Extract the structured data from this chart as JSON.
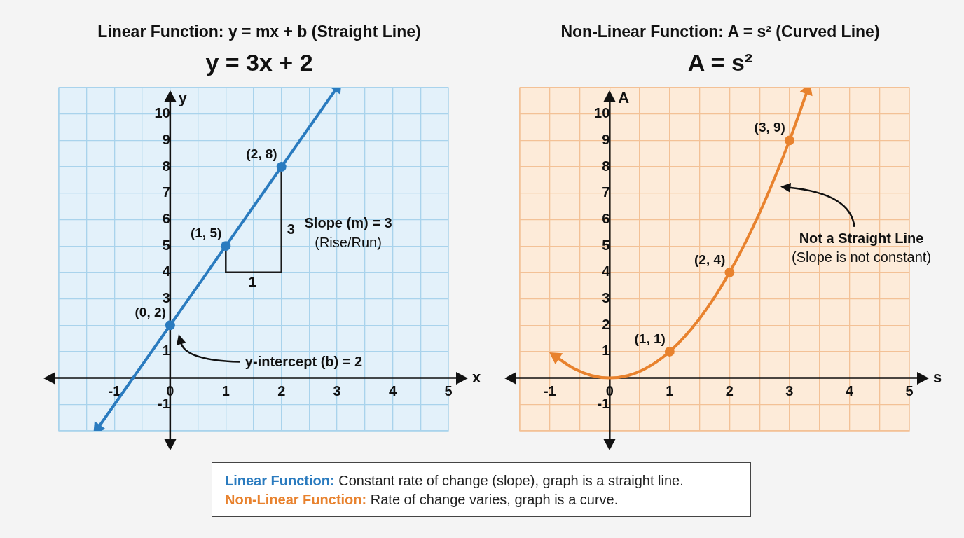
{
  "chart_data": [
    {
      "type": "line",
      "title": "Linear Function: y = mx + b (Straight Line)",
      "subtitle": "y = 3x + 2",
      "xlabel": "x",
      "ylabel": "y",
      "xlim": [
        -2,
        5
      ],
      "ylim": [
        -2,
        11
      ],
      "xticks": [
        {
          "value": -2,
          "label": null
        },
        {
          "value": -1.5,
          "label": null
        },
        -1,
        {
          "value": -0.5,
          "label": null
        },
        0,
        {
          "value": 0.5,
          "label": null
        },
        1,
        {
          "value": 1.5,
          "label": null
        },
        2,
        {
          "value": 2.5,
          "label": null
        },
        3,
        {
          "value": 3.5,
          "label": null
        },
        4,
        {
          "value": 4.5,
          "label": null
        },
        5
      ],
      "yticks": [
        {
          "value": -2,
          "label": null
        },
        -1,
        {
          "value": 0,
          "label": null
        },
        1,
        {
          "value": 2,
          "label": null
        },
        3,
        4,
        5,
        6,
        7,
        8,
        9,
        10,
        {
          "value": 11,
          "label": null
        }
      ],
      "grid": true,
      "legend": false,
      "series": [
        {
          "type": "line",
          "color": "#2a7bbf",
          "x": [
            -1.3,
            3
          ],
          "values": [
            -1.9,
            11
          ],
          "marker": "triangle"
        },
        {
          "type": "line",
          "color": "#1a1a1a",
          "x": [
            1,
            1,
            2,
            2
          ],
          "values": [
            5,
            4,
            4,
            8
          ],
          "marker": "none"
        },
        {
          "type": "scatter",
          "color": "#2a7bbf",
          "x": [
            0,
            1,
            2
          ],
          "values": [
            2,
            5,
            8
          ],
          "marker": "circle"
        }
      ],
      "annotations": [
        {
          "text": "(0, 2)",
          "x": 0,
          "y": 2
        },
        {
          "text": "(1, 5)",
          "x": 1,
          "y": 5
        },
        {
          "text": "(2, 8)",
          "x": 2,
          "y": 8
        },
        "Slope (m) = 3",
        "(Rise/Run)",
        "3",
        "1",
        "y-intercept (b) = 2"
      ]
    },
    {
      "type": "line",
      "title": "Non-Linear Function: A = s² (Curved Line)",
      "subtitle": "A = s²",
      "xlabel": "s",
      "ylabel": "A",
      "xlim": [
        -1.5,
        5
      ],
      "ylim": [
        -2,
        11
      ],
      "xticks": [
        {
          "value": -1.5,
          "label": null
        },
        -1,
        {
          "value": -0.5,
          "label": null
        },
        0,
        {
          "value": 0.5,
          "label": null
        },
        1,
        {
          "value": 1.5,
          "label": null
        },
        2,
        {
          "value": 2.5,
          "label": null
        },
        3,
        {
          "value": 3.5,
          "label": null
        },
        4,
        {
          "value": 4.5,
          "label": null
        },
        5
      ],
      "yticks": [
        {
          "value": -2,
          "label": null
        },
        -1,
        {
          "value": 0,
          "label": null
        },
        1,
        2,
        3,
        4,
        5,
        6,
        7,
        8,
        9,
        10,
        {
          "value": 11,
          "label": null
        }
      ],
      "grid": true,
      "legend": false,
      "series": [
        {
          "type": "line",
          "color": "#e8822e",
          "x": [
            -0.9,
            -0.6,
            -0.3,
            0,
            0.3,
            0.6,
            1,
            1.5,
            2,
            2.5,
            3,
            3.3
          ],
          "values": [
            0.81,
            0.36,
            0.09,
            0,
            0.09,
            0.36,
            1,
            2.25,
            4,
            6.25,
            9,
            10.9
          ],
          "marker": "none"
        },
        {
          "type": "scatter",
          "color": "#e8822e",
          "x": [
            1,
            2,
            3
          ],
          "values": [
            1,
            4,
            9
          ],
          "marker": "circle"
        }
      ],
      "annotations": [
        {
          "text": "(1, 1)",
          "x": 1,
          "y": 1
        },
        {
          "text": "(2, 4)",
          "x": 2,
          "y": 4
        },
        {
          "text": "(3, 9)",
          "x": 3,
          "y": 9
        },
        "Not a Straight Line",
        "(Slope is not constant)"
      ]
    },
    {
      "type": "other",
      "annotations": [
        "Linear Function: Constant rate of change (slope), graph is a straight line.",
        "Non-Linear Function: Rate of change varies, graph is a curve."
      ]
    }
  ]
}
